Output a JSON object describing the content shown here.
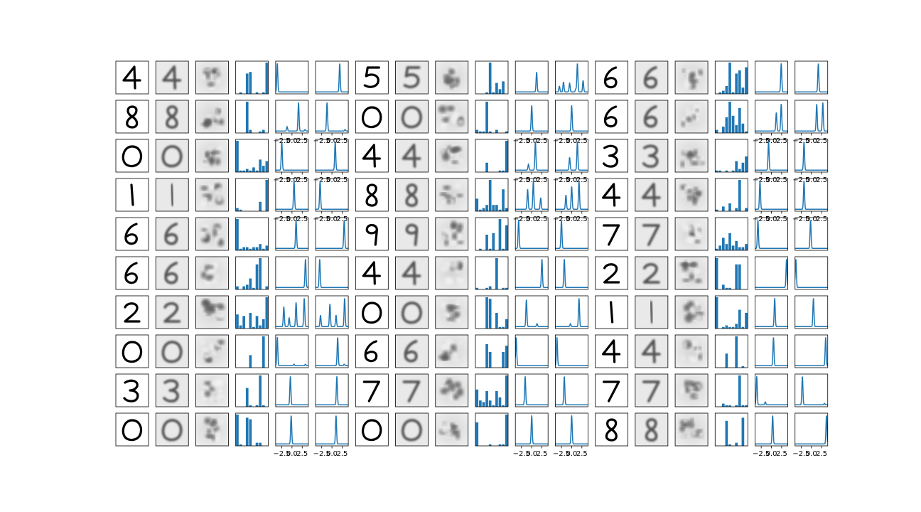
{
  "colors": {
    "series": "#1f77b4",
    "frame": "#000000",
    "digit_ink": "#000000",
    "background": "#ffffff"
  },
  "chart_data": {
    "type": "grid-of-small-multiples",
    "title": "",
    "layout": {
      "rows": 10,
      "groups": 3,
      "columns_per_group": [
        "input-digit",
        "reconstruction",
        "heatmap",
        "bar",
        "line",
        "line"
      ]
    },
    "digits": [
      [
        "4",
        "5",
        "6"
      ],
      [
        "8",
        "0",
        "6"
      ],
      [
        "0",
        "4",
        "3"
      ],
      [
        "1",
        "8",
        "4"
      ],
      [
        "6",
        "9",
        "7"
      ],
      [
        "6",
        "4",
        "2"
      ],
      [
        "2",
        "0",
        "1"
      ],
      [
        "0",
        "6",
        "4"
      ],
      [
        "3",
        "7",
        "7"
      ],
      [
        "0",
        "0",
        "8"
      ]
    ],
    "line_axis": {
      "xlim": [
        -4,
        4
      ],
      "ticks": [
        -2.5,
        0.0,
        2.5
      ],
      "tick_labels": [
        "−2.5",
        "0.0",
        "2.5"
      ],
      "labeled_rows": [
        1,
        2,
        3,
        9
      ]
    },
    "bars": [
      [
        [
          0,
          0.05,
          0,
          0.65,
          0.7,
          0,
          0.05,
          0,
          0.05,
          1.0
        ],
        [
          0,
          0,
          0,
          0.05,
          1.0,
          0.05,
          0.35,
          0.15,
          0.4,
          0
        ],
        [
          0,
          0.05,
          0.1,
          0.25,
          1.0,
          0.05,
          0.65,
          0.75,
          0.2,
          0.85
        ]
      ],
      [
        [
          0,
          0,
          0,
          1.0,
          0.1,
          0,
          0,
          0.05,
          0.1,
          0
        ],
        [
          0.1,
          0.05,
          0.05,
          1.0,
          0.05,
          0,
          0.1,
          0,
          0,
          0.05
        ],
        [
          0.1,
          0,
          0.2,
          0.5,
          1.0,
          0.55,
          0.25,
          0.8,
          0.3,
          0.05
        ]
      ],
      [
        [
          1.0,
          0.05,
          0.05,
          0.1,
          0.05,
          0.15,
          0.05,
          0.4,
          0.2,
          0.35
        ],
        [
          0,
          0,
          0,
          0.3,
          0,
          0,
          0,
          0.05,
          0.05,
          1.0
        ],
        [
          0.05,
          0.05,
          0,
          0.05,
          0,
          0.05,
          0.35,
          0.1,
          0.3,
          0.5
        ]
      ],
      [
        [
          0.1,
          0.05,
          0,
          0,
          0,
          0,
          0,
          0.3,
          0,
          1.0
        ],
        [
          0.4,
          0.05,
          0.1,
          0.2,
          1.0,
          0.2,
          0.2,
          0.05,
          0.7,
          0.1
        ],
        [
          0.05,
          0,
          0.15,
          0,
          0.25,
          0,
          0.1,
          1.0,
          0,
          0.1
        ]
      ],
      [
        [
          1.0,
          0.05,
          0.1,
          0.1,
          0.05,
          0.1,
          0.1,
          0.2,
          0.05,
          0.15
        ],
        [
          0,
          0.05,
          0,
          0.5,
          0.05,
          0.55,
          0,
          1.0,
          0.05,
          0.8
        ],
        [
          0.05,
          0.15,
          0.4,
          0.2,
          0.55,
          0.15,
          0.3,
          0.1,
          0.1,
          0.2
        ]
      ],
      [
        [
          0.1,
          0,
          0.1,
          0.15,
          0.35,
          0.05,
          0.8,
          1.0,
          0,
          0.1
        ],
        [
          0.05,
          0,
          0,
          0.05,
          0.1,
          0,
          1.0,
          0,
          0.05,
          0.05
        ],
        [
          1.0,
          0,
          0.15,
          0.05,
          0.05,
          0,
          0.8,
          0.8,
          0,
          0
        ]
      ],
      [
        [
          0.45,
          0.1,
          0.4,
          0,
          0.5,
          0.05,
          0.4,
          0.1,
          0.3,
          1.0
        ],
        [
          0,
          0,
          0,
          1.0,
          0.95,
          0,
          0.5,
          0.05,
          0.05,
          0.3
        ],
        [
          1.0,
          0,
          0.05,
          0.1,
          0.05,
          0.05,
          0.15,
          0.6,
          0.05,
          0.5
        ]
      ],
      [
        [
          0,
          0,
          0,
          0,
          0.4,
          0,
          0,
          0,
          1.0,
          0
        ],
        [
          0,
          0,
          0,
          0.75,
          0.5,
          0,
          0,
          0,
          0.5,
          0.7
        ],
        [
          0,
          0,
          0,
          0.45,
          0,
          0,
          1.0,
          0,
          0.05,
          0
        ]
      ],
      [
        [
          0,
          0,
          0,
          0.6,
          0.05,
          0,
          0.05,
          1.0,
          0.05,
          0
        ],
        [
          0.55,
          0.2,
          0.15,
          0.5,
          0.2,
          0.05,
          0.5,
          0.3,
          0.05,
          1.0
        ],
        [
          0,
          0,
          0.1,
          0.05,
          0.05,
          0,
          0.05,
          1.0,
          0.05,
          0.05
        ]
      ],
      [
        [
          1.0,
          0.05,
          0,
          0.9,
          0.85,
          0,
          0.1,
          0.1,
          0,
          0
        ],
        [
          0.75,
          0,
          0,
          0,
          0.05,
          0,
          0,
          0.05,
          0.05,
          1.0
        ],
        [
          0,
          0,
          0,
          0.8,
          0.05,
          0,
          0.1,
          0,
          0.9,
          0
        ]
      ]
    ],
    "curves": [
      [
        [
          [
            -3.6,
            1.0
          ]
        ],
        [
          [
            1.9,
            1.0
          ]
        ],
        [
          [
            1.2,
            0.7
          ]
        ],
        [
          [
            1.4,
            1.0
          ],
          [
            -3,
            0.2
          ],
          [
            -2,
            0.35
          ],
          [
            -0.5,
            0.3
          ],
          [
            2.8,
            0.4
          ],
          [
            1,
            0.1
          ]
        ],
        [
          [
            2.4,
            1.0
          ]
        ],
        [
          [
            1.7,
            1.0
          ]
        ]
      ],
      [
        [
          [
            1.6,
            1.0
          ],
          [
            -1.2,
            0.15
          ],
          [
            3.2,
            0.05
          ]
        ],
        [
          [
            -1.2,
            1.0
          ],
          [
            3.2,
            0.05
          ]
        ],
        [
          [
            0.0,
            0.9
          ]
        ],
        [
          [
            0.0,
            0.9
          ]
        ],
        [
          [
            1.2,
            0.65
          ],
          [
            2.4,
            0.95
          ]
        ],
        [
          [
            1.3,
            0.95
          ],
          [
            2.8,
            1.0
          ]
        ]
      ],
      [
        [
          [
            -2.5,
            1.0
          ]
        ],
        [
          [
            0.8,
            1.0
          ]
        ],
        [
          [
            -0.8,
            0.2
          ],
          [
            0.9,
            1.0
          ]
        ],
        [
          [
            -0.5,
            0.45
          ],
          [
            1.4,
            1.0
          ]
        ],
        [
          [
            -0.7,
            1.0
          ]
        ],
        [
          [
            -1.8,
            1.0
          ]
        ]
      ],
      [
        [
          [
            0.5,
            1.0
          ]
        ],
        [
          [
            -2.9,
            1.0
          ]
        ],
        [
          [
            -1,
            0.7
          ],
          [
            0.4,
            1.0
          ],
          [
            2.2,
            0.4
          ]
        ],
        [
          [
            -1.4,
            0.5
          ],
          [
            0,
            0.8
          ],
          [
            1.8,
            1.0
          ]
        ],
        [
          [
            -2.8,
            1.0
          ]
        ],
        [
          [
            -1.8,
            1.0
          ]
        ]
      ],
      [
        [
          [
            1.0,
            1.0
          ]
        ],
        [
          [
            3.0,
            1.0
          ]
        ],
        [
          [
            -3.2,
            1.0
          ]
        ],
        [
          [
            -2.5,
            1.0
          ]
        ],
        [
          [
            -3.3,
            1.0
          ]
        ],
        [
          [
            -0.2,
            1.0
          ]
        ]
      ],
      [
        [
          [
            3.3,
            1.0
          ]
        ],
        [
          [
            -3.0,
            1.0
          ]
        ],
        [
          [
            2.5,
            1.0
          ]
        ],
        [
          [
            -1.8,
            1.0
          ]
        ],
        [
          [
            3.7,
            1.0
          ]
        ],
        [
          [
            -3.8,
            1.0
          ]
        ]
      ],
      [
        [
          [
            -2.0,
            0.7
          ],
          [
            -0.7,
            0.3
          ],
          [
            1.0,
            0.85
          ],
          [
            3.0,
            1.0
          ]
        ],
        [
          [
            -2.8,
            0.4
          ],
          [
            -0.5,
            0.8
          ],
          [
            1.0,
            0.4
          ],
          [
            3.1,
            1.0
          ]
        ],
        [
          [
            -1.3,
            0.95
          ],
          [
            1.3,
            0.1
          ]
        ],
        [
          [
            -0.3,
            0.1
          ],
          [
            1.8,
            1.0
          ]
        ],
        [
          [
            0.8,
            1.0
          ]
        ],
        [
          [
            0.5,
            1.0
          ]
        ]
      ],
      [
        [
          [
            -3.6,
            1.0
          ],
          [
            0.5,
            0.05
          ],
          [
            3.3,
            0.05
          ]
        ],
        [
          [
            1.4,
            1.0
          ],
          [
            3.0,
            0.05
          ]
        ],
        [
          [
            -3.8,
            1.0
          ]
        ],
        [
          [
            -3.6,
            1.0
          ]
        ],
        [
          [
            0.5,
            1.0
          ]
        ],
        [
          [
            3.5,
            1.0
          ]
        ]
      ],
      [
        [
          [
            -0.4,
            1.0
          ]
        ],
        [
          [
            1.2,
            1.0
          ]
        ],
        [
          [
            -1.6,
            1.0
          ]
        ],
        [
          [
            -1.8,
            1.0
          ]
        ],
        [
          [
            -3.6,
            1.0
          ],
          [
            -1.5,
            0.1
          ]
        ],
        [
          [
            -2.2,
            1.0
          ],
          [
            3.2,
            0.05
          ]
        ]
      ],
      [
        [
          [
            -0.2,
            1.0
          ]
        ],
        [
          [
            1.0,
            1.0
          ]
        ],
        [
          [
            0.0,
            1.0
          ]
        ],
        [
          [
            0.0,
            1.0
          ]
        ],
        [
          [
            0.3,
            1.0
          ]
        ],
        [
          [
            3.7,
            1.0
          ]
        ]
      ]
    ]
  }
}
